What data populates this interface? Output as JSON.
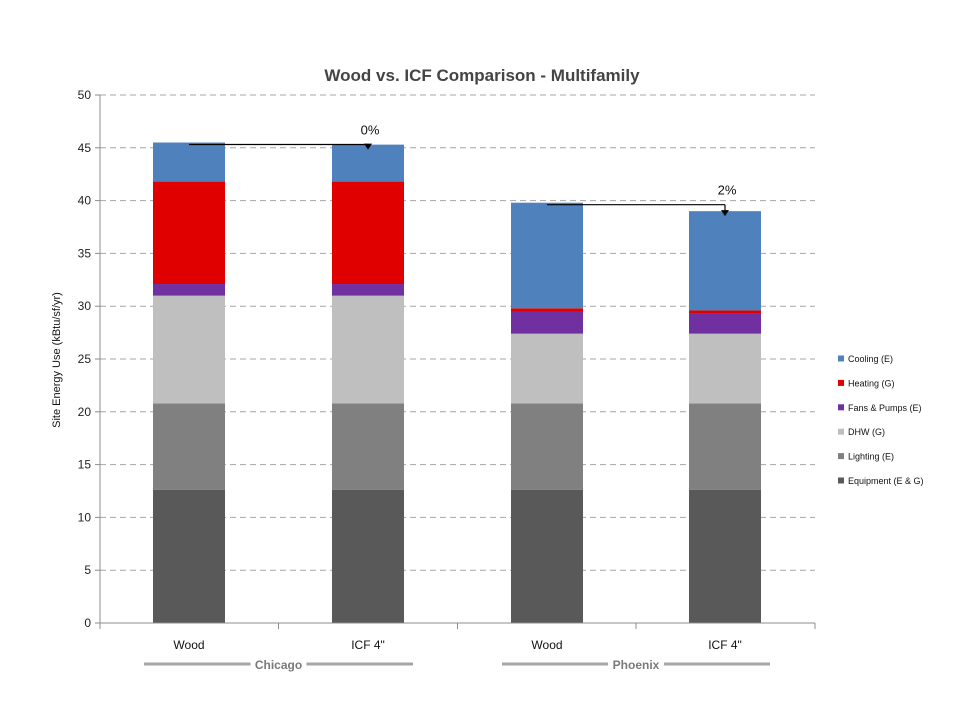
{
  "chart_data": {
    "type": "bar",
    "stacked": true,
    "title": "Wood vs. ICF Comparison - Multifamily",
    "ylabel": "Site Energy Use (kBtu/sf/yr)",
    "xlabel": "",
    "ylim": [
      0,
      50
    ],
    "yticks": [
      0,
      5,
      10,
      15,
      20,
      25,
      30,
      35,
      40,
      45,
      50
    ],
    "grid": true,
    "legend_position": "right",
    "categories": [
      "Wood",
      "ICF 4\"",
      "Wood",
      "ICF 4\""
    ],
    "groups": [
      {
        "name": "Chicago",
        "categories": [
          0,
          1
        ]
      },
      {
        "name": "Phoenix",
        "categories": [
          2,
          3
        ]
      }
    ],
    "series": [
      {
        "name": "Equipment (E & G)",
        "color": "#595959",
        "values": [
          12.6,
          12.6,
          12.6,
          12.6
        ]
      },
      {
        "name": "Lighting (E)",
        "color": "#808080",
        "values": [
          8.2,
          8.2,
          8.2,
          8.2
        ]
      },
      {
        "name": "DHW (G)",
        "color": "#bfbfbf",
        "values": [
          10.2,
          10.2,
          6.6,
          6.6
        ]
      },
      {
        "name": "Fans & Pumps (E)",
        "color": "#7030a0",
        "values": [
          1.1,
          1.1,
          2.1,
          1.9
        ]
      },
      {
        "name": "Heating (G)",
        "color": "#e00000",
        "values": [
          9.7,
          9.7,
          0.3,
          0.3
        ]
      },
      {
        "name": "Cooling (E)",
        "color": "#4f81bd",
        "values": [
          3.7,
          3.5,
          10.0,
          9.4
        ]
      }
    ],
    "annotations": [
      {
        "text": "0%",
        "from_category": 0,
        "to_category": 1
      },
      {
        "text": "2%",
        "from_category": 2,
        "to_category": 3
      }
    ]
  },
  "colors": {
    "grid": "#a6a6a6",
    "axis": "#8c8c8c",
    "group_line": "#a6a6a6",
    "title": "#444444"
  }
}
